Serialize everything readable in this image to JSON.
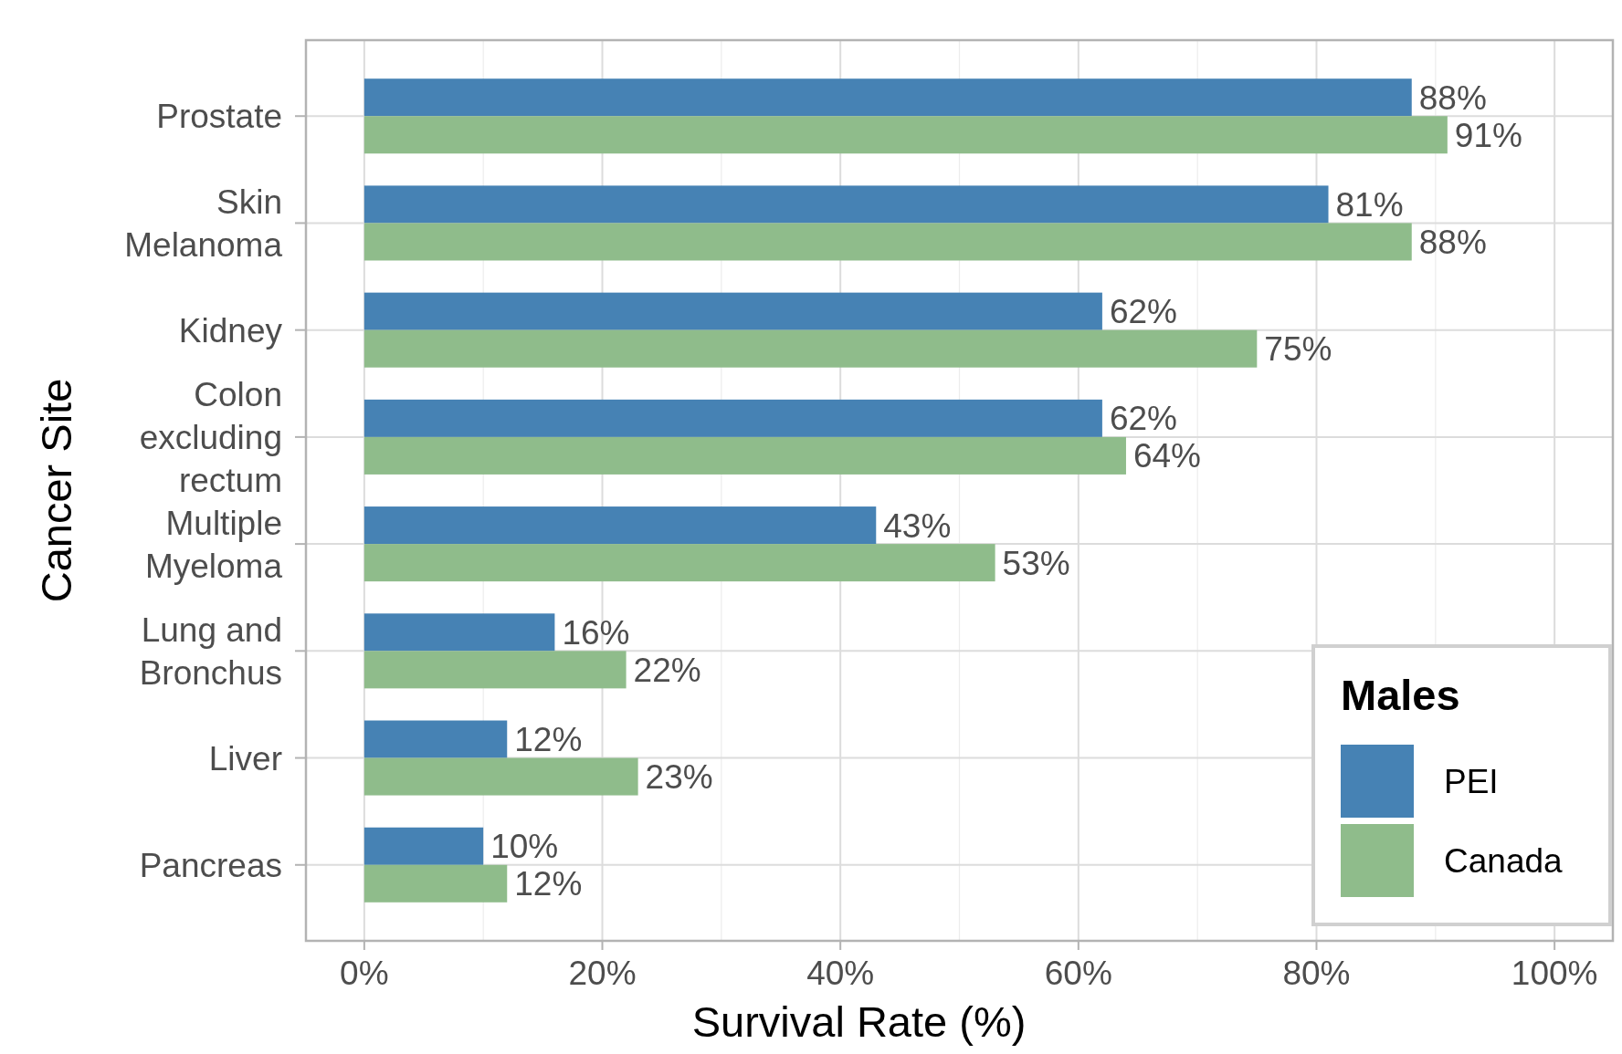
{
  "chart_data": {
    "type": "bar",
    "orientation": "horizontal",
    "xlabel": "Survival Rate (%)",
    "ylabel": "Cancer Site",
    "legend_title": "Males",
    "legend": "bottom right",
    "grid": true,
    "categories": [
      "Prostate",
      "Skin\nMelanoma",
      "Kidney",
      "Colon\nexcluding\nrectum",
      "Multiple\nMyeloma",
      "Lung and\nBronchus",
      "Liver",
      "Pancreas"
    ],
    "xlim": [
      -4.9,
      104.9
    ],
    "xticks": [
      {
        "value": 0,
        "label": "0%"
      },
      {
        "value": 10,
        "label": null
      },
      {
        "value": 20,
        "label": "20%"
      },
      {
        "value": 30,
        "label": null
      },
      {
        "value": 40,
        "label": "40%"
      },
      {
        "value": 50,
        "label": null
      },
      {
        "value": 60,
        "label": "60%"
      },
      {
        "value": 70,
        "label": null
      },
      {
        "value": 80,
        "label": "80%"
      },
      {
        "value": 90,
        "label": null
      },
      {
        "value": 100,
        "label": "100%"
      }
    ],
    "series": [
      {
        "name": "PEI",
        "color": "#4682b4",
        "values": [
          88,
          81,
          62,
          62,
          43,
          16,
          12,
          10
        ],
        "value_labels": [
          "88%",
          "81%",
          "62%",
          "62%",
          "43%",
          "16%",
          "12%",
          "10%"
        ]
      },
      {
        "name": "Canada",
        "color": "#8fbc8b",
        "values": [
          91,
          88,
          75,
          64,
          53,
          22,
          23,
          12
        ],
        "value_labels": [
          "91%",
          "88%",
          "75%",
          "64%",
          "53%",
          "22%",
          "23%",
          "12%"
        ]
      }
    ]
  }
}
